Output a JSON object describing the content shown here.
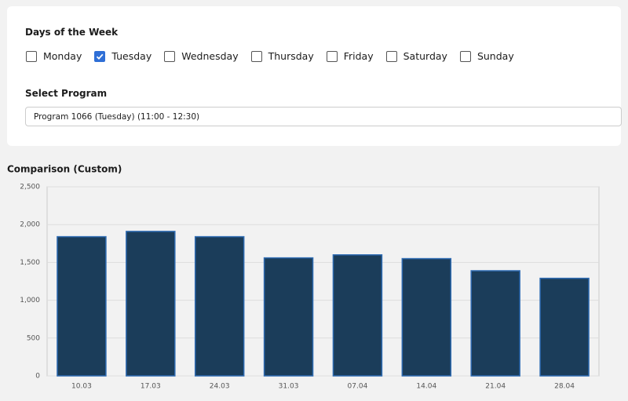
{
  "form": {
    "days_title": "Days of the Week",
    "days": [
      {
        "label": "Monday",
        "checked": false
      },
      {
        "label": "Tuesday",
        "checked": true
      },
      {
        "label": "Wednesday",
        "checked": false
      },
      {
        "label": "Thursday",
        "checked": false
      },
      {
        "label": "Friday",
        "checked": false
      },
      {
        "label": "Saturday",
        "checked": false
      },
      {
        "label": "Sunday",
        "checked": false
      }
    ],
    "program_label": "Select Program",
    "program_value": "Program 1066 (Tuesday) (11:00 - 12:30)"
  },
  "chart_data": {
    "type": "bar",
    "title": "Comparison (Custom)",
    "categories": [
      "10.03",
      "17.03",
      "24.03",
      "31.03",
      "07.04",
      "14.04",
      "21.04",
      "28.04"
    ],
    "values": [
      1840,
      1910,
      1840,
      1560,
      1600,
      1550,
      1390,
      1290
    ],
    "color": "#1b3d5a",
    "edge_color": "#2f6cb3",
    "ylim": [
      0,
      2500
    ],
    "yticks": [
      0,
      500,
      {
        "value": 1000,
        "label": "1,000"
      },
      {
        "value": 1500,
        "label": "1,500"
      },
      {
        "value": 2000,
        "label": "2,000"
      },
      {
        "value": 2500,
        "label": "2,500"
      }
    ],
    "grid": true
  }
}
